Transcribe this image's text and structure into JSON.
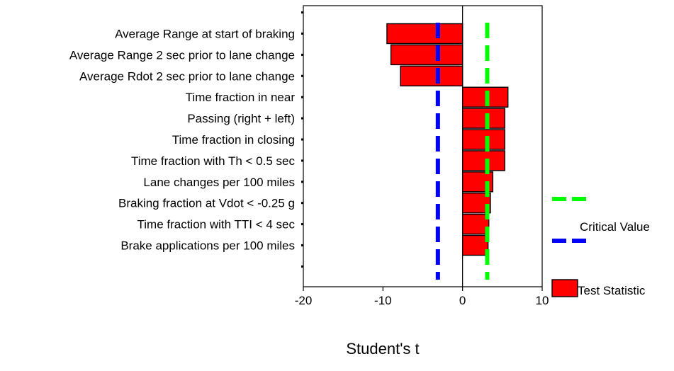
{
  "chart_data": {
    "type": "bar",
    "orientation": "horizontal",
    "title": "",
    "xlabel": "Student's t",
    "ylabel": "",
    "xlim": [
      -20,
      10
    ],
    "xticks": [
      -20,
      -10,
      0,
      10
    ],
    "xtick_labels": [
      "-20",
      "-10",
      "0",
      "10"
    ],
    "grid": false,
    "legend_position": "right",
    "categories": [
      "Average Range at start of braking",
      "Average Range 2 sec prior to lane change",
      "Average Rdot 2 sec prior to lane change",
      "Time fraction in near",
      "Passing (right + left)",
      "Time fraction in closing",
      "Time fraction with Th < 0.5 sec",
      "Lane changes per 100 miles",
      "Braking fraction at Vdot  < -0.25 g",
      "Time fraction with TTI < 4 sec",
      "Brake applications per 100 miles"
    ],
    "series": [
      {
        "name": "Test Statistic",
        "color": "#ff0000",
        "values": [
          -9.5,
          -9.0,
          -7.8,
          5.7,
          5.3,
          5.3,
          5.3,
          3.8,
          3.5,
          3.3,
          3.2
        ]
      }
    ],
    "reference_lines": [
      {
        "name": "Critical Value",
        "value": 3.1,
        "color": "#00ff00",
        "style": "dashed"
      },
      {
        "name": "Critical Value",
        "value": -3.1,
        "color": "#0000ff",
        "style": "dashed"
      }
    ],
    "legend": {
      "critical_label": "Critical Value",
      "test_label": "Test Statistic",
      "critical_colors": [
        "#00ff00",
        "#0000ff"
      ],
      "test_color": "#ff0000"
    }
  }
}
